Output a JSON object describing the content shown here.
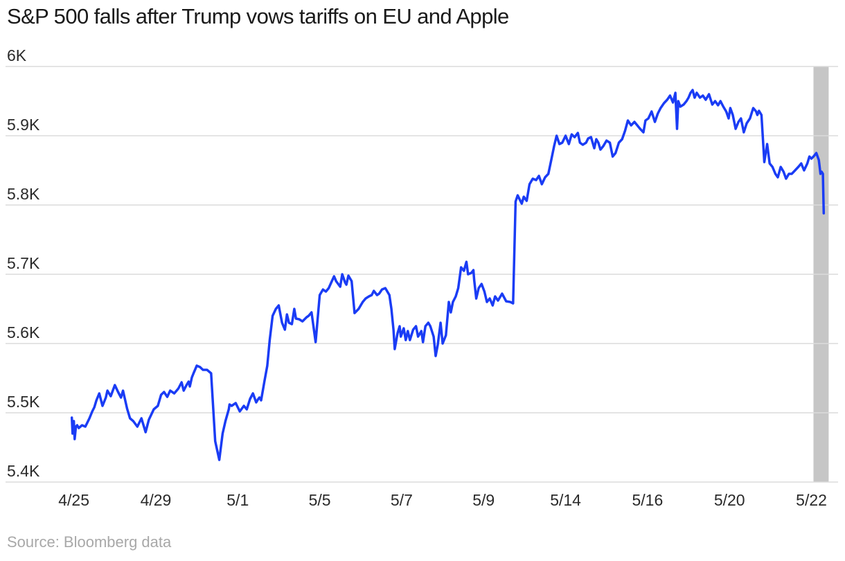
{
  "chart_data": {
    "type": "line",
    "title": "S&P 500 falls after Trump vows tariffs on EU and Apple",
    "source": "Source: Bloomberg data",
    "xlabel": "",
    "ylabel": "",
    "ylim": [
      5400,
      6000
    ],
    "y_ticks": [
      {
        "value": 6000,
        "label": "6K"
      },
      {
        "value": 5900,
        "label": "5.9K"
      },
      {
        "value": 5800,
        "label": "5.8K"
      },
      {
        "value": 5700,
        "label": "5.7K"
      },
      {
        "value": 5600,
        "label": "5.6K"
      },
      {
        "value": 5500,
        "label": "5.5K"
      },
      {
        "value": 5400,
        "label": "5.4K"
      }
    ],
    "x_ticks": [
      {
        "t": 0,
        "label": "4/25"
      },
      {
        "t": 2,
        "label": "4/29"
      },
      {
        "t": 4,
        "label": "5/1"
      },
      {
        "t": 6,
        "label": "5/5"
      },
      {
        "t": 8,
        "label": "5/7"
      },
      {
        "t": 10,
        "label": "5/9"
      },
      {
        "t": 12,
        "label": "5/14"
      },
      {
        "t": 14,
        "label": "5/16"
      },
      {
        "t": 16,
        "label": "5/20"
      },
      {
        "t": 18,
        "label": "5/22"
      }
    ],
    "x_range": [
      -0.45,
      18.65
    ],
    "shaded_region": [
      18.05,
      18.42
    ],
    "colors": {
      "line": "#1a3cf5",
      "grid": "#dcdcdc",
      "shade": "#c6c6c6",
      "text": "#1a1a1a",
      "source": "#a8a8a8"
    },
    "series": [
      {
        "name": "S&P 500",
        "x": [
          -0.05,
          -0.03,
          0.0,
          0.02,
          0.05,
          0.08,
          0.12,
          0.2,
          0.28,
          0.38,
          0.45,
          0.5,
          0.55,
          0.62,
          0.7,
          0.78,
          0.82,
          0.9,
          1.0,
          1.08,
          1.15,
          1.2,
          1.3,
          1.37,
          1.45,
          1.55,
          1.65,
          1.75,
          1.83,
          1.95,
          2.05,
          2.13,
          2.2,
          2.28,
          2.35,
          2.45,
          2.55,
          2.63,
          2.68,
          2.75,
          2.8,
          2.83,
          2.88,
          2.92,
          3.0,
          3.08,
          3.15,
          3.25,
          3.35,
          3.45,
          3.55,
          3.63,
          3.7,
          3.78,
          3.8,
          3.85,
          3.95,
          4.05,
          4.15,
          4.22,
          4.3,
          4.37,
          4.45,
          4.5,
          4.53,
          4.57,
          4.65,
          4.72,
          4.78,
          4.85,
          4.93,
          5.0,
          5.08,
          5.15,
          5.2,
          5.25,
          5.32,
          5.38,
          5.42,
          5.5,
          5.58,
          5.68,
          5.73,
          5.8,
          5.9,
          6.0,
          6.08,
          6.15,
          6.22,
          6.28,
          6.35,
          6.4,
          6.5,
          6.55,
          6.62,
          6.65,
          6.7,
          6.78,
          6.85,
          6.95,
          7.05,
          7.12,
          7.2,
          7.27,
          7.32,
          7.4,
          7.45,
          7.52,
          7.6,
          7.7,
          7.75,
          7.8,
          7.83,
          7.9,
          7.95,
          7.98,
          8.05,
          8.1,
          8.15,
          8.2,
          8.28,
          8.35,
          8.4,
          8.48,
          8.52,
          8.58,
          8.65,
          8.7,
          8.78,
          8.83,
          8.88,
          8.95,
          9.0,
          9.08,
          9.15,
          9.2,
          9.25,
          9.32,
          9.38,
          9.45,
          9.52,
          9.58,
          9.62,
          9.7,
          9.75,
          9.77,
          9.82,
          9.88,
          9.95,
          10.02,
          10.08,
          10.15,
          10.22,
          10.28,
          10.35,
          10.45,
          10.55,
          10.65,
          10.72,
          10.78,
          10.83,
          10.88,
          10.93,
          10.98,
          11.05,
          11.12,
          11.2,
          11.28,
          11.35,
          11.42,
          11.5,
          11.58,
          11.65,
          11.72,
          11.78,
          11.85,
          11.92,
          12.0,
          12.08,
          12.15,
          12.22,
          12.3,
          12.35,
          12.42,
          12.5,
          12.55,
          12.62,
          12.7,
          12.75,
          12.8,
          12.85,
          12.92,
          13.0,
          13.08,
          13.15,
          13.22,
          13.3,
          13.38,
          13.45,
          13.52,
          13.6,
          13.68,
          13.75,
          13.82,
          13.9,
          13.95,
          14.02,
          14.1,
          14.18,
          14.25,
          14.32,
          14.4,
          14.48,
          14.55,
          14.62,
          14.68,
          14.72,
          14.75,
          14.8,
          14.88,
          14.95,
          15.0,
          15.05,
          15.1,
          15.15,
          15.2,
          15.28,
          15.35,
          15.42,
          15.5,
          15.58,
          15.65,
          15.72,
          15.78,
          15.85,
          15.92,
          15.98,
          16.02,
          16.08,
          16.15,
          16.22,
          16.28,
          16.35,
          16.42,
          16.5,
          16.58,
          16.65,
          16.68,
          16.72,
          16.78,
          16.85,
          16.92,
          16.98,
          17.05,
          17.12,
          17.18,
          17.25,
          17.32,
          17.38,
          17.45,
          17.52,
          17.6,
          17.68,
          17.75,
          17.82,
          17.9,
          17.95,
          18.0,
          18.05,
          18.12,
          18.18,
          18.22,
          18.25,
          18.28,
          18.3
        ],
        "values": [
          5493,
          5470,
          5488,
          5462,
          5480,
          5482,
          5478,
          5482,
          5480,
          5492,
          5502,
          5508,
          5518,
          5528,
          5510,
          5522,
          5532,
          5524,
          5540,
          5530,
          5522,
          5532,
          5506,
          5492,
          5488,
          5480,
          5492,
          5472,
          5490,
          5505,
          5510,
          5526,
          5530,
          5523,
          5532,
          5528,
          5535,
          5544,
          5532,
          5540,
          5545,
          5538,
          5551,
          5557,
          5568,
          5566,
          5562,
          5562,
          5557,
          5459,
          5432,
          5470,
          5488,
          5505,
          5512,
          5510,
          5514,
          5502,
          5510,
          5505,
          5520,
          5528,
          5515,
          5520,
          5522,
          5518,
          5545,
          5568,
          5605,
          5640,
          5650,
          5655,
          5630,
          5620,
          5642,
          5630,
          5628,
          5650,
          5636,
          5635,
          5632,
          5638,
          5640,
          5645,
          5602,
          5670,
          5678,
          5675,
          5680,
          5688,
          5697,
          5690,
          5682,
          5700,
          5688,
          5685,
          5698,
          5690,
          5644,
          5650,
          5660,
          5665,
          5668,
          5670,
          5676,
          5670,
          5672,
          5678,
          5680,
          5670,
          5650,
          5620,
          5592,
          5615,
          5625,
          5610,
          5622,
          5605,
          5618,
          5605,
          5620,
          5625,
          5610,
          5618,
          5602,
          5625,
          5630,
          5625,
          5610,
          5582,
          5598,
          5630,
          5600,
          5612,
          5660,
          5645,
          5660,
          5668,
          5680,
          5710,
          5705,
          5718,
          5700,
          5702,
          5706,
          5692,
          5665,
          5680,
          5686,
          5675,
          5660,
          5665,
          5655,
          5668,
          5662,
          5672,
          5661,
          5660,
          5658,
          5805,
          5814,
          5808,
          5802,
          5812,
          5806,
          5830,
          5838,
          5836,
          5842,
          5830,
          5840,
          5845,
          5865,
          5885,
          5900,
          5888,
          5890,
          5900,
          5888,
          5902,
          5898,
          5904,
          5890,
          5887,
          5890,
          5896,
          5898,
          5882,
          5895,
          5890,
          5880,
          5885,
          5893,
          5890,
          5870,
          5875,
          5890,
          5895,
          5907,
          5922,
          5915,
          5920,
          5915,
          5910,
          5905,
          5922,
          5925,
          5935,
          5920,
          5932,
          5940,
          5947,
          5952,
          5958,
          5948,
          5962,
          5910,
          5950,
          5942,
          5945,
          5950,
          5955,
          5962,
          5966,
          5955,
          5962,
          5955,
          5958,
          5952,
          5960,
          5945,
          5950,
          5944,
          5950,
          5942,
          5935,
          5925,
          5940,
          5930,
          5910,
          5920,
          5925,
          5905,
          5918,
          5925,
          5940,
          5935,
          5930,
          5936,
          5930,
          5862,
          5888,
          5860,
          5855,
          5845,
          5840,
          5855,
          5848,
          5838,
          5845,
          5845,
          5850,
          5855,
          5860,
          5850,
          5860,
          5870,
          5867,
          5870,
          5875,
          5865,
          5845,
          5848,
          5845,
          5788
        ]
      }
    ]
  }
}
